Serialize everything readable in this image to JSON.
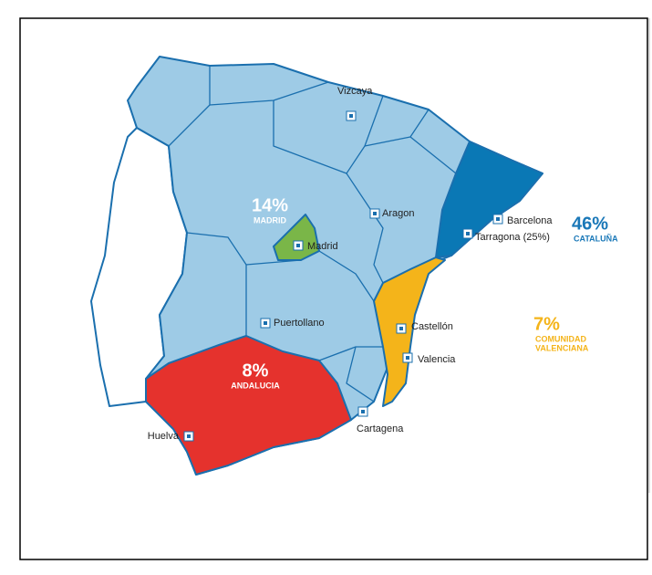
{
  "map": {
    "regions": [
      {
        "name": [
          "MADRID"
        ],
        "value": 14,
        "value_label": "14%",
        "color": "#7ab648",
        "label_color": "#ffffff"
      },
      {
        "name": [
          "ANDALUCIA"
        ],
        "value": 8,
        "value_label": "8%",
        "color": "#e5322d",
        "label_color": "#ffffff"
      },
      {
        "name": [
          "CATALUÑA"
        ],
        "value": 46,
        "value_label": "46%",
        "color": "#0a78b5",
        "label_color": "#1a78b8"
      },
      {
        "name": [
          "COMUNIDAD",
          "VALENCIANA"
        ],
        "value": 7,
        "value_label": "7%",
        "color": "#f4b41a",
        "label_color": "#f4b41a"
      }
    ],
    "cities": [
      "Vizcaya",
      "Aragon",
      "Barcelona",
      "Tarragona (25%)",
      "Madrid",
      "Puertollano",
      "Castellón",
      "Valencia",
      "Cartagena",
      "Huelva"
    ]
  }
}
